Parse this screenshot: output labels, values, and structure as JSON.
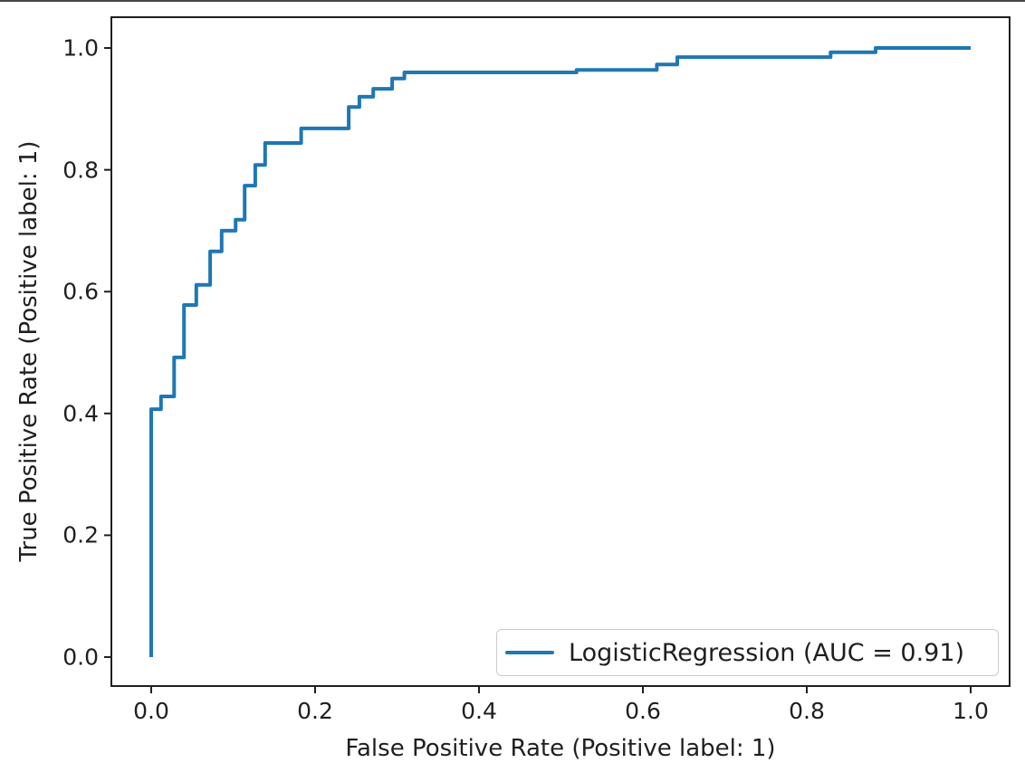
{
  "figure": {
    "background": "#ffffff",
    "top_border_color": "#474747"
  },
  "chart_data": {
    "type": "line",
    "variant": "roc_curve_step",
    "title": "",
    "xlabel": "False Positive Rate (Positive label: 1)",
    "ylabel": "True Positive Rate (Positive label: 1)",
    "xlim": [
      -0.0486,
      1.0475
    ],
    "ylim": [
      -0.0476,
      1.0506
    ],
    "x_tick_values": [
      0.0,
      0.2,
      0.4,
      0.6,
      0.8,
      1.0
    ],
    "x_tick_labels": [
      "0.0",
      "0.2",
      "0.4",
      "0.6",
      "0.8",
      "1.0"
    ],
    "y_tick_values": [
      0.0,
      0.2,
      0.4,
      0.6,
      0.8,
      1.0
    ],
    "y_tick_labels": [
      "0.0",
      "0.2",
      "0.4",
      "0.6",
      "0.8",
      "1.0"
    ],
    "grid": false,
    "axis_color": "#1f1f1f",
    "legend": {
      "position": "lower right",
      "entries": [
        {
          "label": "LogisticRegression (AUC = 0.91)",
          "color": "#1f77b4",
          "line_style": "solid"
        }
      ]
    },
    "series": [
      {
        "name": "LogisticRegression",
        "auc": 0.91,
        "color": "#1f77b4",
        "draw_style": "steps",
        "points": [
          [
            0.0,
            0.0
          ],
          [
            0.0,
            0.407
          ],
          [
            0.012,
            0.407
          ],
          [
            0.012,
            0.428
          ],
          [
            0.028,
            0.428
          ],
          [
            0.028,
            0.492
          ],
          [
            0.04,
            0.492
          ],
          [
            0.04,
            0.578
          ],
          [
            0.055,
            0.578
          ],
          [
            0.055,
            0.611
          ],
          [
            0.072,
            0.611
          ],
          [
            0.072,
            0.666
          ],
          [
            0.086,
            0.666
          ],
          [
            0.086,
            0.7
          ],
          [
            0.103,
            0.7
          ],
          [
            0.103,
            0.718
          ],
          [
            0.114,
            0.718
          ],
          [
            0.114,
            0.774
          ],
          [
            0.127,
            0.774
          ],
          [
            0.127,
            0.808
          ],
          [
            0.139,
            0.808
          ],
          [
            0.139,
            0.844
          ],
          [
            0.183,
            0.844
          ],
          [
            0.183,
            0.868
          ],
          [
            0.241,
            0.868
          ],
          [
            0.241,
            0.903
          ],
          [
            0.254,
            0.903
          ],
          [
            0.254,
            0.92
          ],
          [
            0.271,
            0.92
          ],
          [
            0.271,
            0.933
          ],
          [
            0.294,
            0.933
          ],
          [
            0.294,
            0.95
          ],
          [
            0.309,
            0.95
          ],
          [
            0.309,
            0.96
          ],
          [
            0.519,
            0.96
          ],
          [
            0.519,
            0.964
          ],
          [
            0.617,
            0.964
          ],
          [
            0.617,
            0.973
          ],
          [
            0.642,
            0.973
          ],
          [
            0.642,
            0.985
          ],
          [
            0.829,
            0.985
          ],
          [
            0.829,
            0.993
          ],
          [
            0.884,
            0.993
          ],
          [
            0.884,
            1.0
          ],
          [
            1.0,
            1.0
          ]
        ]
      }
    ]
  }
}
